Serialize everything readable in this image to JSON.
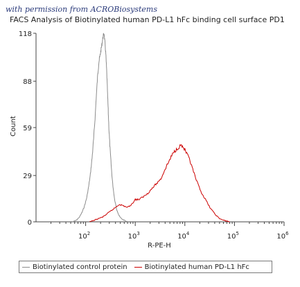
{
  "watermark": "with permission from ACROBiosystems",
  "chart_data": {
    "type": "area",
    "title": "FACS Analysis of Biotinylated human PD-L1 hFc binding cell surface PD1",
    "xlabel": "R-PE-H",
    "ylabel": "Count",
    "xscale": "log",
    "xlim": [
      10,
      1000000
    ],
    "ylim": [
      0,
      118
    ],
    "x_ticks": [
      {
        "value": 100,
        "base": "10",
        "exp": "2"
      },
      {
        "value": 1000,
        "base": "10",
        "exp": "3"
      },
      {
        "value": 10000,
        "base": "10",
        "exp": "4"
      },
      {
        "value": 100000,
        "base": "10",
        "exp": "5"
      },
      {
        "value": 1000000,
        "base": "10",
        "exp": "6"
      }
    ],
    "y_ticks": [
      0,
      29,
      59,
      88,
      118
    ],
    "grid": false,
    "legend_position": "bottom",
    "series": [
      {
        "name": "Biotinylated control protein",
        "color": "#8c8c8c",
        "x": [
          55,
          65,
          75,
          85,
          95,
          105,
          115,
          125,
          135,
          145,
          155,
          165,
          175,
          185,
          195,
          205,
          215,
          225,
          235,
          245,
          255,
          265,
          275,
          285,
          295,
          310,
          330,
          350,
          380,
          420,
          470,
          530,
          600,
          700
        ],
        "y": [
          0,
          1,
          3,
          6,
          10,
          15,
          22,
          30,
          40,
          52,
          65,
          80,
          92,
          100,
          104,
          108,
          112,
          116,
          118,
          112,
          105,
          95,
          82,
          70,
          58,
          46,
          34,
          24,
          15,
          8,
          4,
          2,
          1,
          0
        ]
      },
      {
        "name": "Biotinylated human PD-L1 hFc",
        "color": "#cc0000",
        "x": [
          120,
          150,
          180,
          220,
          270,
          330,
          400,
          480,
          580,
          700,
          850,
          1000,
          1200,
          1500,
          1800,
          2200,
          2700,
          3300,
          4000,
          4800,
          5800,
          7000,
          8500,
          10000,
          12000,
          14000,
          17000,
          21000,
          26000,
          32000,
          40000,
          50000,
          60000,
          70000,
          80000
        ],
        "y": [
          0,
          1,
          2,
          3,
          5,
          7,
          9,
          11,
          10,
          9,
          11,
          14,
          14,
          16,
          18,
          21,
          24,
          27,
          33,
          38,
          43,
          46,
          48,
          45,
          40,
          34,
          26,
          19,
          14,
          9,
          5,
          2,
          1,
          0.5,
          0
        ]
      }
    ]
  }
}
